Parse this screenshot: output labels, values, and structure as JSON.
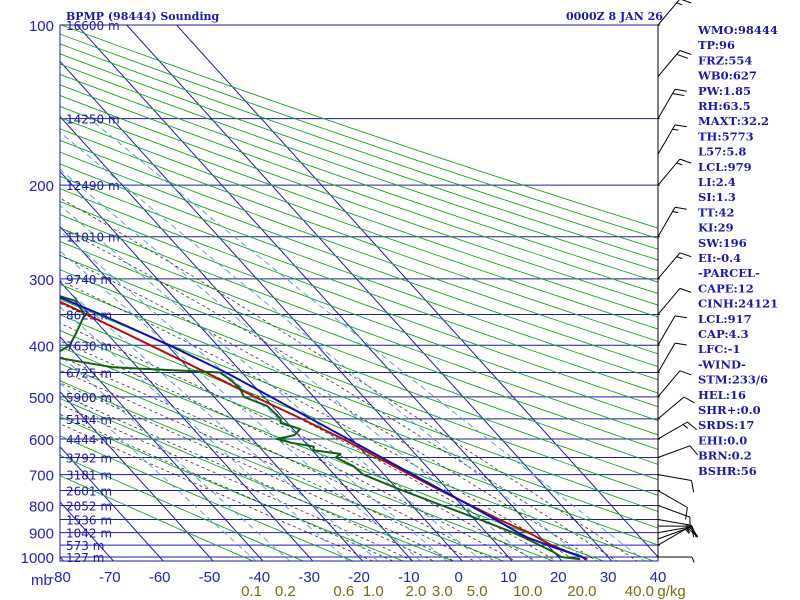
{
  "header": {
    "station": "BPMP (98444) Sounding",
    "time": "0000Z  8 JAN 26"
  },
  "indices": [
    "WMO:98444",
    "TP:96",
    "FRZ:554",
    "WB0:627",
    "PW:1.85",
    "RH:63.5",
    "MAXT:32.2",
    "TH:5773",
    "L57:5.8",
    "LCL:979",
    "LI:2.4",
    "SI:1.3",
    "TT:42",
    "KI:29",
    "SW:196",
    "EI:-0.4",
    "-PARCEL-",
    "CAPE:12",
    "CINH:24121",
    "LCL:917",
    "CAP:4.3",
    "LFC:-1",
    "-WIND-",
    "STM:233/6",
    "HEL:16",
    "SHR+:0.0",
    "SRDS:17",
    "EHI:0.0",
    "BRN:0.2",
    "BSHR:56"
  ],
  "colors": {
    "grid": "#1c1ca8",
    "dry_adiabat": "#18a818",
    "moist_adiabat": "#303030",
    "mixing_ratio": "#4a9ad8",
    "temperature": "#b01010",
    "dewpoint": "#106010",
    "parcel": "#1010b0",
    "mixing_label": "#7a6a10"
  },
  "chart_data": {
    "type": "skew-t",
    "title": "BPMP (98444) Sounding",
    "xlabel": "",
    "ylabel": "mb",
    "pressure_ticks": [
      100,
      200,
      300,
      400,
      500,
      600,
      700,
      800,
      900,
      1000
    ],
    "temperature_ticks": [
      -80,
      -70,
      -60,
      -50,
      -40,
      -30,
      -20,
      -10,
      0,
      10,
      20,
      30,
      40
    ],
    "xlim": [
      -80,
      40
    ],
    "ylim": [
      1000,
      100
    ],
    "heights": [
      {
        "p": 100,
        "label": "16600 m"
      },
      {
        "p": 150,
        "label": "14250 m"
      },
      {
        "p": 200,
        "label": "12490 m"
      },
      {
        "p": 250,
        "label": "11010 m"
      },
      {
        "p": 300,
        "label": "9740 m"
      },
      {
        "p": 350,
        "label": "8623 m"
      },
      {
        "p": 400,
        "label": "7630 m"
      },
      {
        "p": 450,
        "label": "6725 m"
      },
      {
        "p": 500,
        "label": "5900 m"
      },
      {
        "p": 550,
        "label": "5144 m"
      },
      {
        "p": 600,
        "label": "4444 m"
      },
      {
        "p": 650,
        "label": "3792 m"
      },
      {
        "p": 700,
        "label": "3181 m"
      },
      {
        "p": 750,
        "label": "2601 m"
      },
      {
        "p": 800,
        "label": "2052 m"
      },
      {
        "p": 850,
        "label": "1536 m"
      },
      {
        "p": 900,
        "label": "1042 m"
      },
      {
        "p": 950,
        "label": "573 m"
      },
      {
        "p": 1000,
        "label": "127 m"
      }
    ],
    "mixing_ratio_labels": [
      {
        "w": 0.1,
        "label": "0.1"
      },
      {
        "w": 0.2,
        "label": "0.2"
      },
      {
        "w": 0.6,
        "label": "0.6"
      },
      {
        "w": 1.0,
        "label": "1.0"
      },
      {
        "w": 2.0,
        "label": "2.0"
      },
      {
        "w": 3.0,
        "label": "3.0"
      },
      {
        "w": 5.0,
        "label": "5.0"
      },
      {
        "w": 10.0,
        "label": "10.0"
      },
      {
        "w": 20.0,
        "label": "20.0"
      },
      {
        "w": 40.0,
        "label": "40.0"
      }
    ],
    "mixing_ratio_unit": "g/kg",
    "series": [
      {
        "key": "temperature",
        "points": [
          [
            1010,
            25.4
          ],
          [
            1000,
            24.8
          ],
          [
            975,
            22.6
          ],
          [
            950,
            20.8
          ],
          [
            925,
            19.6
          ],
          [
            900,
            18.6
          ],
          [
            875,
            16.6
          ],
          [
            850,
            15.0
          ],
          [
            800,
            11.8
          ],
          [
            750,
            8.4
          ],
          [
            700,
            5.2
          ],
          [
            650,
            1.8
          ],
          [
            600,
            -1.8
          ],
          [
            550,
            -6.4
          ],
          [
            500,
            -11.8
          ],
          [
            450,
            -17.2
          ],
          [
            400,
            -23.4
          ],
          [
            350,
            -30.6
          ],
          [
            300,
            -39.2
          ],
          [
            250,
            -48.2
          ],
          [
            200,
            -56.8
          ],
          [
            150,
            -66.4
          ],
          [
            100,
            -77.2
          ]
        ]
      },
      {
        "key": "dewpoint",
        "points": [
          [
            1010,
            24.0
          ],
          [
            1000,
            20.6
          ],
          [
            975,
            19.8
          ],
          [
            950,
            18.4
          ],
          [
            925,
            17.0
          ],
          [
            900,
            15.4
          ],
          [
            850,
            11.0
          ],
          [
            800,
            6.0
          ],
          [
            750,
            0.8
          ],
          [
            700,
            -4.2
          ],
          [
            675,
            -4.6
          ],
          [
            650,
            -6.6
          ],
          [
            640,
            -5.0
          ],
          [
            630,
            -9.8
          ],
          [
            620,
            -9.0
          ],
          [
            610,
            -12.8
          ],
          [
            600,
            -15.0
          ],
          [
            590,
            -10.8
          ],
          [
            575,
            -8.6
          ],
          [
            560,
            -11.4
          ],
          [
            550,
            -10.6
          ],
          [
            520,
            -11.0
          ],
          [
            500,
            -14.0
          ],
          [
            480,
            -13.2
          ],
          [
            460,
            -13.8
          ],
          [
            450,
            -14.4
          ],
          [
            440,
            -35.0
          ],
          [
            420,
            -45.4
          ],
          [
            400,
            -39.6
          ],
          [
            380,
            -36.2
          ],
          [
            350,
            -31.0
          ],
          [
            330,
            -30.4
          ],
          [
            300,
            -41.0
          ],
          [
            275,
            -47.2
          ],
          [
            260,
            -50.0
          ],
          [
            250,
            -53.4
          ],
          [
            230,
            -61.0
          ],
          [
            200,
            -72.0
          ],
          [
            175,
            -75.6
          ],
          [
            160,
            -73.0
          ],
          [
            150,
            -74.0
          ],
          [
            120,
            -86.0
          ],
          [
            100,
            -96.0
          ]
        ]
      },
      {
        "key": "parcel",
        "points": [
          [
            1010,
            25.0
          ],
          [
            1000,
            24.8
          ],
          [
            950,
            20.0
          ],
          [
            920,
            17.4
          ],
          [
            900,
            16.4
          ],
          [
            850,
            14.2
          ],
          [
            800,
            11.6
          ],
          [
            700,
            5.8
          ],
          [
            600,
            -0.8
          ],
          [
            500,
            -8.6
          ],
          [
            450,
            -13.2
          ],
          [
            400,
            -19.6
          ],
          [
            350,
            -27.8
          ],
          [
            300,
            -38.4
          ],
          [
            250,
            -51.8
          ],
          [
            200,
            -66.0
          ],
          [
            150,
            -85.0
          ],
          [
            100,
            -110.0
          ]
        ]
      }
    ],
    "wind_barbs": [
      {
        "p": 1000,
        "dir": 90,
        "kt": 5
      },
      {
        "p": 950,
        "dir": 60,
        "kt": 10
      },
      {
        "p": 925,
        "dir": 70,
        "kt": 15
      },
      {
        "p": 900,
        "dir": 80,
        "kt": 15
      },
      {
        "p": 875,
        "dir": 90,
        "kt": 10
      },
      {
        "p": 850,
        "dir": 100,
        "kt": 15
      },
      {
        "p": 800,
        "dir": 110,
        "kt": 10
      },
      {
        "p": 750,
        "dir": 120,
        "kt": 10
      },
      {
        "p": 700,
        "dir": 100,
        "kt": 10
      },
      {
        "p": 650,
        "dir": 70,
        "kt": 10
      },
      {
        "p": 600,
        "dir": 60,
        "kt": 15
      },
      {
        "p": 550,
        "dir": 50,
        "kt": 10
      },
      {
        "p": 500,
        "dir": 40,
        "kt": 10
      },
      {
        "p": 450,
        "dir": 30,
        "kt": 10
      },
      {
        "p": 400,
        "dir": 30,
        "kt": 10
      },
      {
        "p": 350,
        "dir": 40,
        "kt": 10
      },
      {
        "p": 300,
        "dir": 40,
        "kt": 15
      },
      {
        "p": 250,
        "dir": 30,
        "kt": 15
      },
      {
        "p": 200,
        "dir": 40,
        "kt": 15
      },
      {
        "p": 175,
        "dir": 30,
        "kt": 15
      },
      {
        "p": 150,
        "dir": 30,
        "kt": 20
      },
      {
        "p": 125,
        "dir": 40,
        "kt": 20
      },
      {
        "p": 100,
        "dir": 40,
        "kt": 15
      }
    ]
  }
}
